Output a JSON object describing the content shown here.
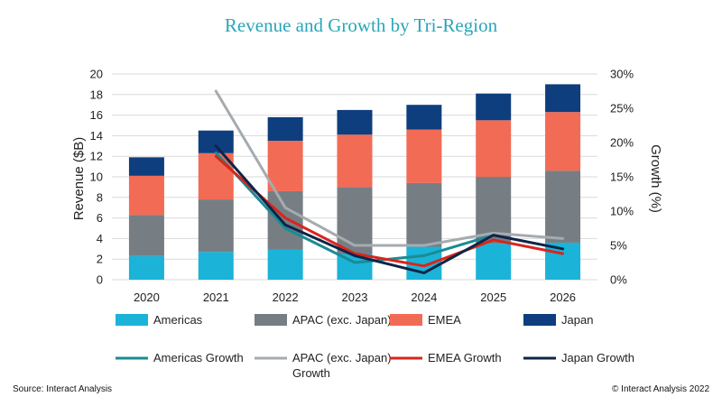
{
  "title": "Revenue and Growth by Tri-Region",
  "source": "Source: Interact Analysis",
  "copyright": "© Interact Analysis 2022",
  "chart_data": {
    "type": "bar",
    "stacked": true,
    "title": "Revenue and Growth by Tri-Region",
    "categories": [
      "2020",
      "2021",
      "2022",
      "2023",
      "2024",
      "2025",
      "2026"
    ],
    "ylabel": "Revenue ($B)",
    "y2label": "Growth (%)",
    "ylim": [
      0,
      20
    ],
    "y2lim": [
      0,
      30
    ],
    "yticks": [
      "0",
      "2",
      "4",
      "6",
      "8",
      "10",
      "12",
      "14",
      "16",
      "18",
      "20"
    ],
    "y2ticks": [
      "0%",
      "5%",
      "10%",
      "15%",
      "20%",
      "25%",
      "30%"
    ],
    "grid": true,
    "legend_position": "bottom",
    "series": [
      {
        "name": "Americas",
        "type": "bar",
        "color": "#1bb3d8",
        "values": [
          2.3,
          2.7,
          2.9,
          2.5,
          3.2,
          3.5,
          3.6
        ]
      },
      {
        "name": "APAC (exc. Japan)",
        "type": "bar",
        "color": "#767e84",
        "values": [
          4.0,
          5.1,
          5.7,
          6.5,
          6.2,
          6.5,
          7.0
        ]
      },
      {
        "name": "EMEA",
        "type": "bar",
        "color": "#f26b55",
        "values": [
          3.8,
          4.5,
          4.9,
          5.1,
          5.2,
          5.5,
          5.7
        ]
      },
      {
        "name": "Japan",
        "type": "bar",
        "color": "#0e3e7e",
        "values": [
          1.8,
          2.2,
          2.3,
          2.4,
          2.4,
          2.6,
          2.7
        ]
      },
      {
        "name": "Americas Growth",
        "type": "line",
        "axis": "right",
        "color": "#1a8b93",
        "values": [
          null,
          18.5,
          7.5,
          2.5,
          3.5,
          6.5,
          null
        ]
      },
      {
        "name": "APAC (exc. Japan) Growth",
        "label_lines": [
          "APAC (exc. Japan)",
          "Growth"
        ],
        "type": "line",
        "axis": "right",
        "color": "#a5abaf",
        "values": [
          null,
          27.5,
          10.5,
          5.0,
          5.0,
          6.8,
          6.0
        ]
      },
      {
        "name": "EMEA Growth",
        "type": "line",
        "axis": "right",
        "color": "#d9251b",
        "values": [
          null,
          18.0,
          9.0,
          3.8,
          2.0,
          5.8,
          3.8
        ]
      },
      {
        "name": "Japan Growth",
        "type": "line",
        "axis": "right",
        "color": "#0f2448",
        "values": [
          null,
          19.5,
          8.0,
          3.5,
          1.0,
          6.5,
          4.5
        ]
      }
    ]
  }
}
